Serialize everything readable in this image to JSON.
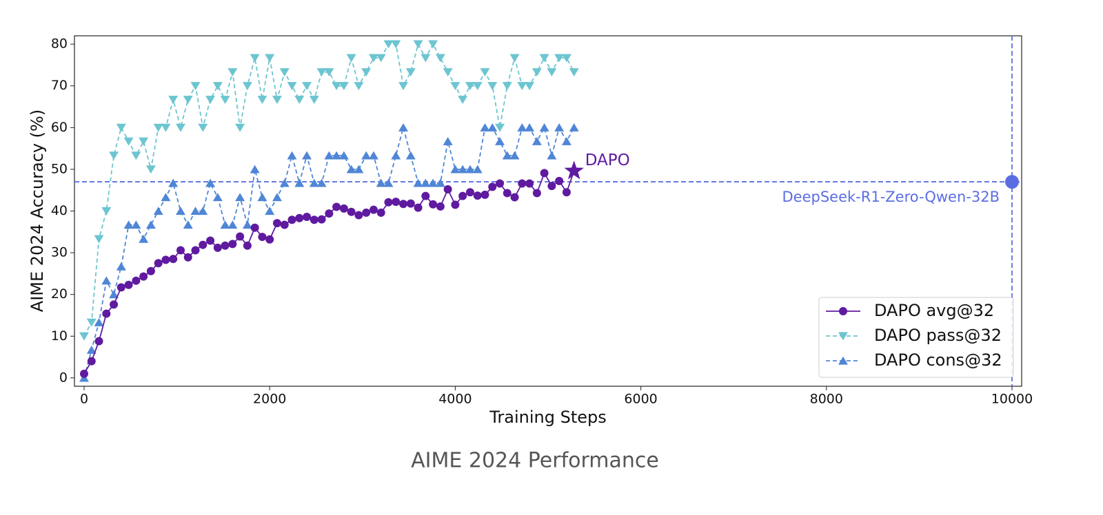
{
  "chart_data": {
    "type": "line",
    "caption": "AIME 2024 Performance",
    "xlabel": "Training Steps",
    "ylabel": "AIME 2024 Accuracy (%)",
    "xlim": [
      -104,
      10104
    ],
    "ylim": [
      -2,
      82
    ],
    "xticks": [
      0,
      2000,
      4000,
      6000,
      8000,
      10000
    ],
    "yticks": [
      0,
      10,
      20,
      30,
      40,
      50,
      60,
      70,
      80
    ],
    "legend": "lower right",
    "x": [
      0,
      80,
      160,
      240,
      320,
      400,
      480,
      560,
      640,
      720,
      800,
      880,
      960,
      1040,
      1120,
      1200,
      1280,
      1360,
      1440,
      1520,
      1600,
      1680,
      1760,
      1840,
      1920,
      2000,
      2080,
      2160,
      2240,
      2320,
      2400,
      2480,
      2560,
      2640,
      2720,
      2800,
      2880,
      2960,
      3040,
      3120,
      3200,
      3280,
      3360,
      3440,
      3520,
      3600,
      3680,
      3760,
      3840,
      3920,
      4000,
      4080,
      4160,
      4240,
      4320,
      4400,
      4480,
      4560,
      4640,
      4720,
      4800,
      4880,
      4960,
      5040,
      5120,
      5200,
      5280
    ],
    "series": [
      {
        "name": "DAPO avg@32",
        "color": "#5f1aa0",
        "marker": "circle",
        "dashed": false,
        "values": [
          1.0,
          4.0,
          8.8,
          15.4,
          17.6,
          21.7,
          22.3,
          23.3,
          24.3,
          25.6,
          27.5,
          28.3,
          28.5,
          30.6,
          28.9,
          30.6,
          31.9,
          32.9,
          31.2,
          31.7,
          32.1,
          33.9,
          31.7,
          36.0,
          33.8,
          33.2,
          37.1,
          36.7,
          37.9,
          38.3,
          38.6,
          37.9,
          38.0,
          39.4,
          41.0,
          40.6,
          39.8,
          39.0,
          39.6,
          40.3,
          39.6,
          42.1,
          42.2,
          41.7,
          41.8,
          40.8,
          43.6,
          41.6,
          41.1,
          45.2,
          41.5,
          43.6,
          44.5,
          43.7,
          43.9,
          45.8,
          46.6,
          44.3,
          43.3,
          46.6,
          46.6,
          44.3,
          49.1,
          46.0,
          47.2,
          44.5,
          49.6
        ]
      },
      {
        "name": "DAPO pass@32",
        "color": "#6cc5d0",
        "marker": "down",
        "dashed": true,
        "values": [
          10,
          13.3,
          33.3,
          40,
          53.3,
          60,
          56.7,
          53.3,
          56.7,
          50,
          60,
          60,
          66.7,
          60,
          66.7,
          70,
          60,
          66.7,
          70,
          66.7,
          73.3,
          60,
          70,
          76.7,
          66.7,
          76.7,
          66.7,
          73.3,
          70,
          66.7,
          70,
          66.7,
          73.3,
          73.3,
          70,
          70,
          76.7,
          70,
          73.3,
          76.7,
          76.7,
          80,
          80,
          70,
          73.3,
          80,
          76.7,
          80,
          76.7,
          73.3,
          70,
          66.7,
          70,
          70,
          73.3,
          70,
          60,
          70,
          76.7,
          70,
          70,
          73.3,
          76.7,
          73.3,
          76.7,
          76.7,
          73.3
        ]
      },
      {
        "name": "DAPO cons@32",
        "color": "#4f86d6",
        "marker": "up",
        "dashed": true,
        "values": [
          0,
          6.7,
          13.3,
          23.3,
          20,
          26.7,
          36.7,
          36.7,
          33.3,
          36.7,
          40,
          43.3,
          46.7,
          40,
          36.7,
          40,
          40,
          46.7,
          43.3,
          36.7,
          36.7,
          43.3,
          36.7,
          50,
          43.3,
          40,
          43.3,
          46.7,
          53.3,
          46.7,
          53.3,
          46.7,
          46.7,
          53.3,
          53.3,
          53.3,
          50,
          50,
          53.3,
          53.3,
          46.7,
          46.7,
          53.3,
          60,
          53.3,
          46.7,
          46.7,
          46.7,
          46.7,
          56.7,
          50,
          50,
          50,
          50,
          60,
          60,
          56.7,
          53.3,
          53.3,
          60,
          60,
          56.7,
          60,
          53.3,
          60,
          56.7,
          60
        ]
      }
    ],
    "final_label": "DAPO",
    "reference": {
      "name": "DeepSeek-R1-Zero-Qwen-32B",
      "x": 10000,
      "y": 47,
      "color": "#5b6ee1"
    }
  }
}
